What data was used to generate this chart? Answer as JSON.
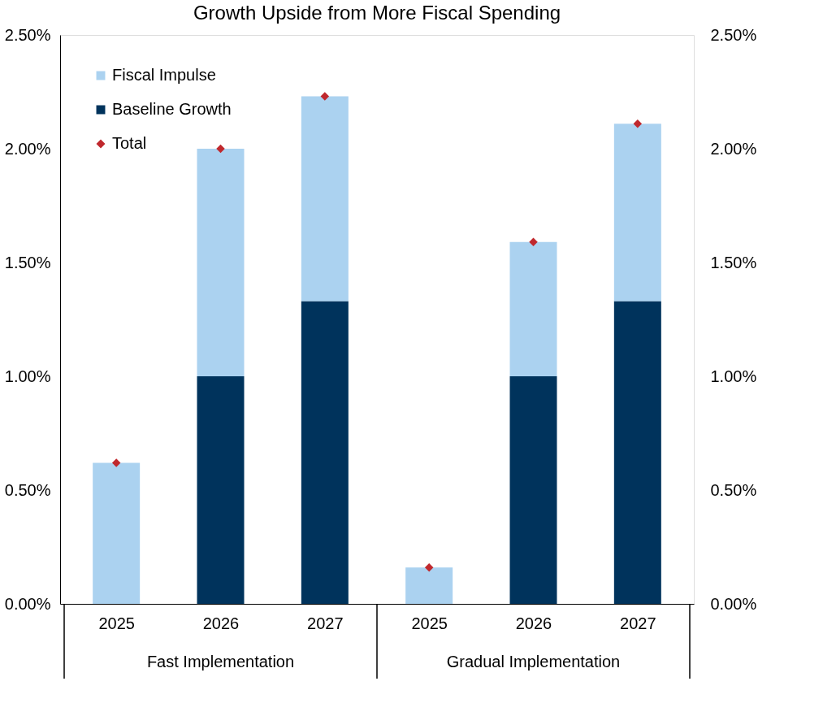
{
  "chart_data": {
    "type": "bar",
    "title": "Growth Upside from More Fiscal Spending",
    "categories": [
      "2025",
      "2026",
      "2027",
      "2025",
      "2026",
      "2027"
    ],
    "stacked": true,
    "series": [
      {
        "name": "Baseline Growth",
        "color": "#00335c",
        "values": [
          0,
          1.0,
          1.33,
          0,
          1.0,
          1.33
        ]
      },
      {
        "name": "Fiscal Impulse",
        "color": "#abd2f0",
        "values": [
          0.62,
          1.0,
          0.9,
          0.16,
          0.59,
          0.78
        ]
      },
      {
        "name": "Total",
        "type": "scatter",
        "marker": "diamond",
        "color": "#c0282d",
        "values": [
          0.62,
          2.0,
          2.23,
          0.16,
          1.59,
          2.11
        ]
      }
    ],
    "ylim": [
      0,
      2.5
    ],
    "yticks": [
      {
        "value": 0,
        "label": "0.00%"
      },
      {
        "value": 0.5,
        "label": "0.50%"
      },
      {
        "value": 1.0,
        "label": "1.00%"
      },
      {
        "value": 1.5,
        "label": "1.50%"
      },
      {
        "value": 2.0,
        "label": "2.00%"
      },
      {
        "value": 2.5,
        "label": "2.50%"
      }
    ],
    "y2lim": [
      0,
      2.5
    ],
    "y2ticks": [
      {
        "value": 0,
        "label": "0.00%"
      },
      {
        "value": 0.5,
        "label": "0.50%"
      },
      {
        "value": 1.0,
        "label": "1.00%"
      },
      {
        "value": 1.5,
        "label": "1.50%"
      },
      {
        "value": 2.0,
        "label": "2.00%"
      },
      {
        "value": 2.5,
        "label": "2.50%"
      }
    ],
    "annotations": [
      "Fast Implementation",
      "Gradual Implementation"
    ],
    "grid": false,
    "legend": "top left"
  }
}
